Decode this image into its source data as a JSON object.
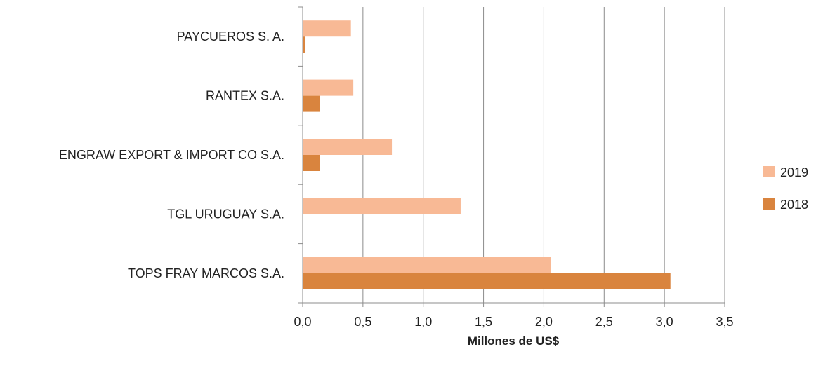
{
  "chart_data": {
    "type": "bar",
    "orientation": "horizontal",
    "categories": [
      "PAYCUEROS S. A.",
      "RANTEX S.A.",
      "ENGRAW EXPORT & IMPORT CO S.A.",
      "TGL URUGUAY S.A.",
      "TOPS FRAY MARCOS S.A."
    ],
    "series": [
      {
        "name": "2019",
        "values": [
          0.4,
          0.42,
          0.74,
          1.31,
          2.06
        ],
        "color": "#F8B995"
      },
      {
        "name": "2018",
        "values": [
          0.01,
          0.14,
          0.14,
          0.0,
          3.05
        ],
        "color": "#D9843E"
      }
    ],
    "xlabel": "Millones de US$",
    "ylabel": "",
    "xlim": [
      0,
      3.5
    ],
    "xticks": [
      "0,0",
      "0,5",
      "1,0",
      "1,5",
      "2,0",
      "2,5",
      "3,0",
      "3,5"
    ],
    "grid": true,
    "legend_position": "right"
  }
}
